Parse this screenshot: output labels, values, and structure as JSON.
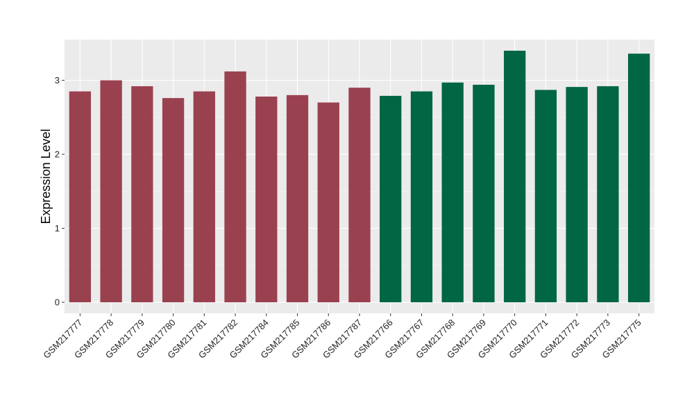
{
  "chart_data": {
    "type": "bar",
    "xlabel": "",
    "ylabel": "Expression Level",
    "ylim": [
      -0.15,
      3.55
    ],
    "yticks": [
      0,
      1,
      2,
      3
    ],
    "grid": true,
    "legend": "none",
    "categories": [
      "GSM217777",
      "GSM217778",
      "GSM217779",
      "GSM217780",
      "GSM217781",
      "GSM217782",
      "GSM217784",
      "GSM217785",
      "GSM217786",
      "GSM217787",
      "GSM217766",
      "GSM217767",
      "GSM217768",
      "GSM217769",
      "GSM217770",
      "GSM217771",
      "GSM217772",
      "GSM217773",
      "GSM217775"
    ],
    "values": [
      2.85,
      3.0,
      2.92,
      2.76,
      2.85,
      3.12,
      2.78,
      2.8,
      2.7,
      2.9,
      2.79,
      2.85,
      2.97,
      2.94,
      3.4,
      2.87,
      2.91,
      2.92,
      3.36
    ],
    "groups": [
      0,
      0,
      0,
      0,
      0,
      0,
      0,
      0,
      0,
      0,
      1,
      1,
      1,
      1,
      1,
      1,
      1,
      1,
      1
    ],
    "group_colors": [
      "#9a4150",
      "#006644"
    ],
    "panel_background": "#ebebeb"
  }
}
